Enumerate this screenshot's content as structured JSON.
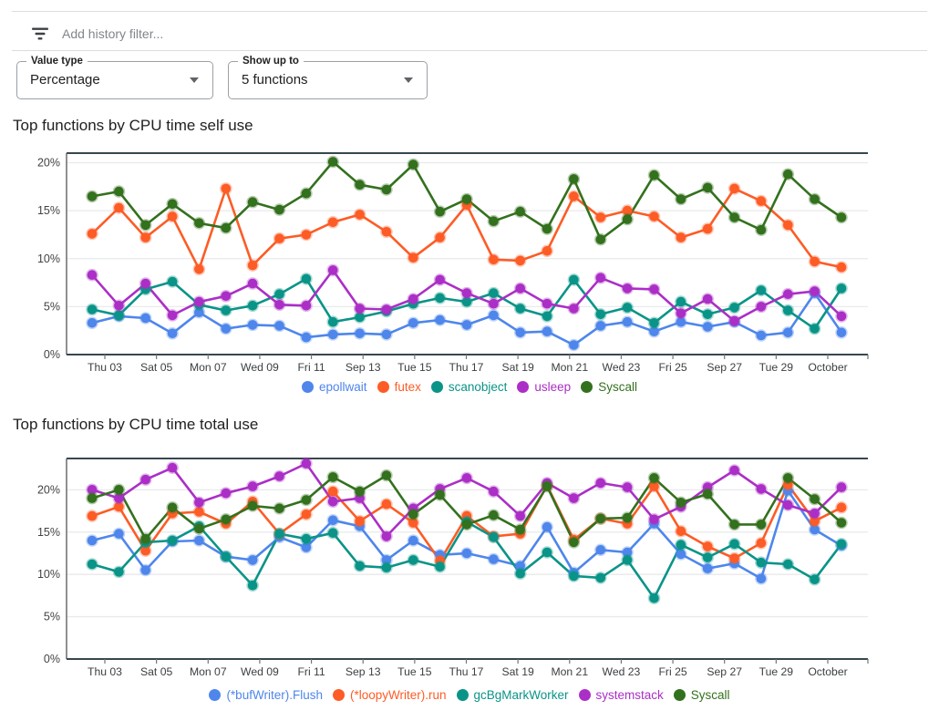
{
  "filter_bar": {
    "icon": "filter-list",
    "placeholder": "Add history filter..."
  },
  "controls": {
    "value_type": {
      "label": "Value type",
      "value": "Percentage",
      "icon": "dropdown-arrow"
    },
    "show_up_to": {
      "label": "Show up to",
      "value": "5 functions",
      "icon": "dropdown-arrow"
    }
  },
  "chart_data": [
    {
      "type": "line",
      "title": "Top functions by CPU time self use",
      "xlabel": "",
      "ylabel": "",
      "ylim": [
        0,
        21
      ],
      "grid": true,
      "legend_position": "bottom",
      "y_tick_labels": [
        "0%",
        "5%",
        "10%",
        "15%",
        "20%"
      ],
      "x_tick_labels": [
        "Thu 03",
        "Sat 05",
        "Mon 07",
        "Wed 09",
        "Fri 11",
        "Sep 13",
        "Tue 15",
        "Thu 17",
        "Sat 19",
        "Mon 21",
        "Wed 23",
        "Fri 25",
        "Sep 27",
        "Tue 29",
        "October"
      ],
      "series": [
        {
          "name": "epollwait",
          "color": "#4e86ec",
          "values": [
            3.3,
            4.0,
            3.8,
            2.2,
            4.4,
            2.7,
            3.1,
            3.0,
            1.8,
            2.1,
            2.2,
            2.1,
            3.3,
            3.6,
            3.1,
            4.1,
            2.3,
            2.4,
            1.0,
            3.0,
            3.4,
            2.4,
            3.4,
            2.9,
            3.4,
            2.0,
            2.3,
            6.4,
            2.3
          ]
        },
        {
          "name": "futex",
          "color": "#fd5c26",
          "values": [
            12.6,
            15.3,
            12.2,
            14.4,
            8.9,
            17.3,
            9.3,
            12.1,
            12.5,
            13.8,
            14.6,
            12.8,
            10.1,
            12.2,
            15.6,
            9.9,
            9.8,
            10.8,
            16.5,
            14.3,
            15.0,
            14.4,
            12.2,
            13.1,
            17.3,
            16.0,
            13.5,
            9.7,
            9.1
          ]
        },
        {
          "name": "scanobject",
          "color": "#0a9488",
          "values": [
            4.7,
            4.1,
            6.8,
            7.6,
            5.2,
            4.6,
            5.1,
            6.3,
            7.9,
            3.4,
            3.9,
            4.5,
            5.3,
            5.9,
            5.5,
            6.4,
            4.8,
            4.0,
            7.8,
            4.2,
            4.9,
            3.3,
            5.5,
            4.2,
            4.9,
            6.7,
            4.6,
            2.7,
            6.9
          ]
        },
        {
          "name": "usleep",
          "color": "#ab2fc6",
          "values": [
            8.3,
            5.1,
            7.4,
            4.1,
            5.5,
            6.1,
            7.4,
            5.2,
            5.1,
            8.8,
            4.8,
            4.7,
            5.8,
            7.8,
            6.4,
            5.3,
            6.9,
            5.3,
            4.8,
            8.0,
            6.9,
            6.8,
            4.3,
            5.8,
            3.5,
            5.0,
            6.3,
            6.6,
            4.0
          ]
        },
        {
          "name": "Syscall",
          "color": "#33711e",
          "values": [
            16.5,
            17.0,
            13.5,
            15.7,
            13.7,
            13.2,
            15.9,
            15.1,
            16.8,
            20.1,
            17.7,
            17.2,
            19.8,
            14.9,
            16.2,
            13.9,
            14.9,
            13.1,
            18.3,
            12.0,
            14.1,
            18.7,
            16.2,
            17.4,
            14.3,
            13.0,
            18.8,
            16.2,
            14.3
          ]
        }
      ]
    },
    {
      "type": "line",
      "title": "Top functions by CPU time total use",
      "xlabel": "",
      "ylabel": "",
      "ylim": [
        0,
        23.7
      ],
      "grid": true,
      "legend_position": "bottom",
      "y_tick_labels": [
        "0%",
        "5%",
        "10%",
        "15%",
        "20%"
      ],
      "x_tick_labels": [
        "Thu 03",
        "Sat 05",
        "Mon 07",
        "Wed 09",
        "Fri 11",
        "Sep 13",
        "Tue 15",
        "Thu 17",
        "Sat 19",
        "Mon 21",
        "Wed 23",
        "Fri 25",
        "Sep 27",
        "Tue 29",
        "October"
      ],
      "series": [
        {
          "name": "(*bufWriter).Flush",
          "color": "#4e86ec",
          "values": [
            14.0,
            14.8,
            10.5,
            13.9,
            14.0,
            12.1,
            11.7,
            14.4,
            13.2,
            16.4,
            15.7,
            11.7,
            14.0,
            12.3,
            12.5,
            11.8,
            11.0,
            15.6,
            10.2,
            12.9,
            12.6,
            16.0,
            12.4,
            10.7,
            11.3,
            9.5,
            19.9,
            15.3,
            13.4
          ]
        },
        {
          "name": "(*loopyWriter).run",
          "color": "#fd5c26",
          "values": [
            16.9,
            18.0,
            12.8,
            17.2,
            17.4,
            16.0,
            18.6,
            14.8,
            17.1,
            19.8,
            16.3,
            18.3,
            16.1,
            11.6,
            16.9,
            14.5,
            14.8,
            20.5,
            14.1,
            16.6,
            16.0,
            20.4,
            15.1,
            13.3,
            11.9,
            13.7,
            20.6,
            16.3,
            17.9
          ]
        },
        {
          "name": "gcBgMarkWorker",
          "color": "#0a9488",
          "values": [
            11.2,
            10.3,
            13.8,
            14.0,
            15.7,
            12.1,
            8.7,
            14.8,
            14.2,
            14.9,
            11.0,
            10.8,
            11.7,
            10.9,
            16.2,
            14.4,
            10.1,
            12.6,
            9.8,
            9.6,
            11.7,
            7.2,
            13.5,
            12.0,
            13.6,
            11.4,
            11.2,
            9.4,
            13.6
          ]
        },
        {
          "name": "systemstack",
          "color": "#ab2fc6",
          "values": [
            20.0,
            19.0,
            21.2,
            22.6,
            18.5,
            19.6,
            20.4,
            21.6,
            23.1,
            18.6,
            19.0,
            14.5,
            17.8,
            20.1,
            21.4,
            19.8,
            16.9,
            20.8,
            19.0,
            20.8,
            20.3,
            16.5,
            18.0,
            20.3,
            22.3,
            20.1,
            18.2,
            17.2,
            20.3
          ]
        },
        {
          "name": "Syscall",
          "color": "#33711e",
          "values": [
            19.0,
            20.0,
            14.2,
            17.9,
            15.4,
            16.5,
            18.1,
            17.8,
            18.8,
            21.5,
            19.8,
            21.7,
            17.1,
            19.4,
            15.9,
            17.0,
            15.3,
            20.4,
            13.8,
            16.6,
            16.7,
            21.4,
            18.5,
            19.5,
            15.9,
            15.9,
            21.4,
            18.9,
            16.1
          ]
        }
      ]
    }
  ]
}
